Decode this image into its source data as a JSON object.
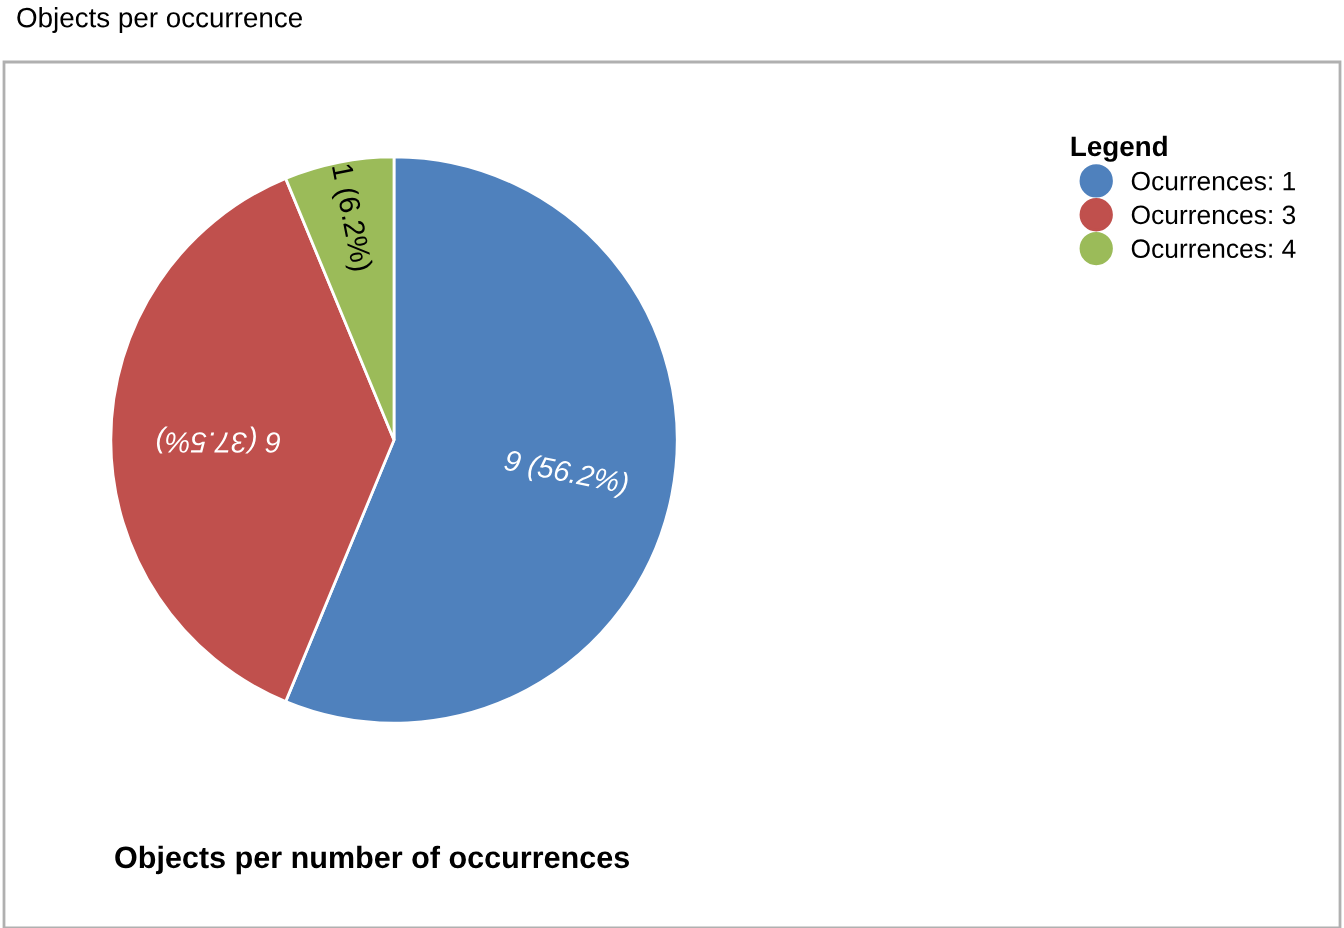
{
  "chart_data": {
    "type": "pie",
    "title": "Objects per number of occurrences",
    "annotations": [
      "Objects per occurrence"
    ],
    "categories": [
      "Ocurrences: 1",
      "Ocurrences: 3",
      "Ocurrences: 4"
    ],
    "values": [
      9,
      6,
      1
    ],
    "value_labels": [
      "9 (56.2%)",
      "6 (37.5%)",
      "1 (6.2%)"
    ],
    "colors": [
      "#4f81bd",
      "#c0504d",
      "#9bbb59"
    ],
    "legend_title": "Legend",
    "legend": "top right"
  }
}
